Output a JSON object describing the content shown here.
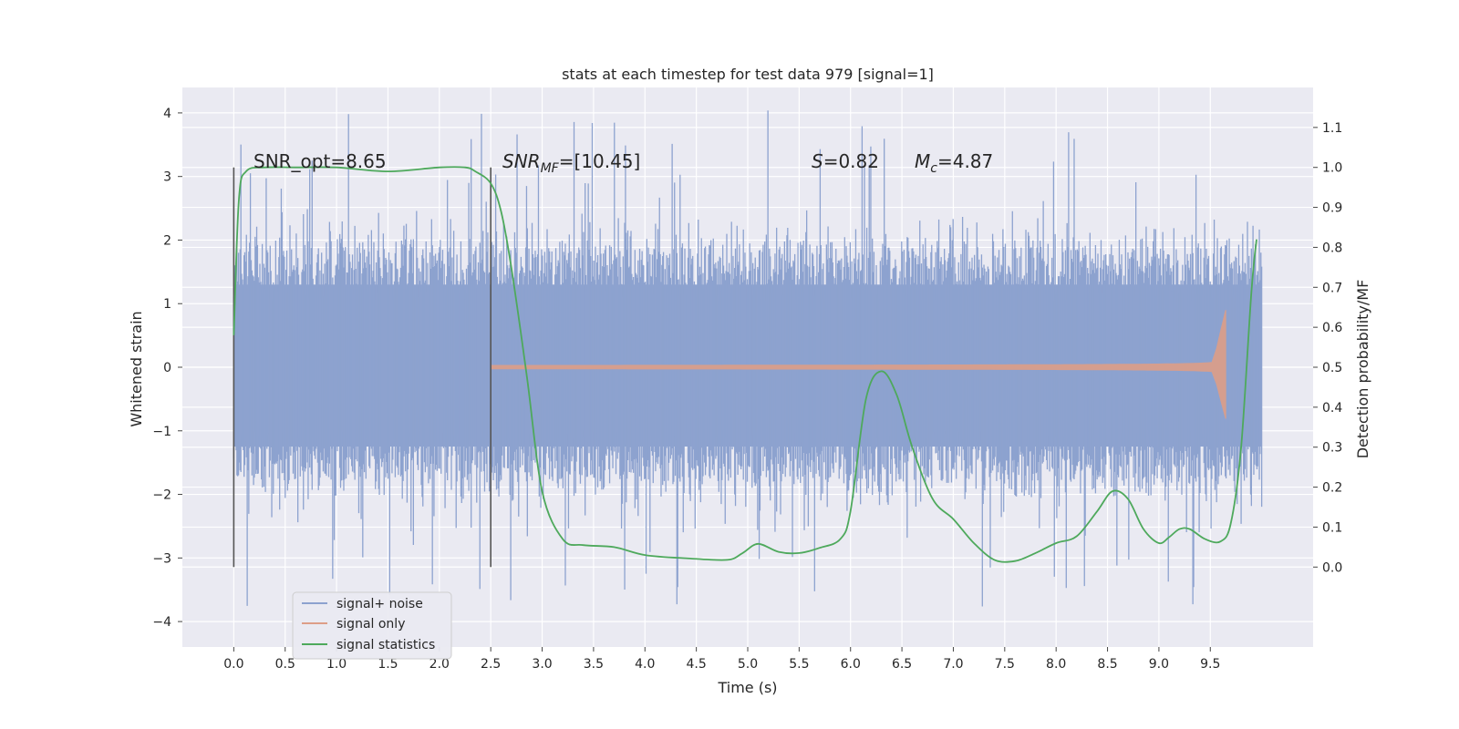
{
  "chart_data": {
    "type": "line",
    "title": "stats at each timestep for test data 979 [signal=1]",
    "xlabel": "Time (s)",
    "ylabel_left": "Whitened strain",
    "ylabel_right": "Detection probability/MF",
    "xlim": [
      -0.5,
      10.5
    ],
    "ylim_left": [
      -4.4,
      4.4
    ],
    "ylim_right": [
      -0.2,
      1.2
    ],
    "x_ticks": [
      "0.0",
      "0.5",
      "1.0",
      "1.5",
      "2.0",
      "2.5",
      "3.0",
      "3.5",
      "4.0",
      "4.5",
      "5.0",
      "5.5",
      "6.0",
      "6.5",
      "7.0",
      "7.5",
      "8.0",
      "8.5",
      "9.0",
      "9.5"
    ],
    "y_ticks_left": [
      "−4",
      "−3",
      "−2",
      "−1",
      "0",
      "1",
      "2",
      "3",
      "4"
    ],
    "y_ticks_right": [
      "0.0",
      "0.1",
      "0.2",
      "0.3",
      "0.4",
      "0.5",
      "0.6",
      "0.7",
      "0.8",
      "0.9",
      "1.0",
      "1.1"
    ],
    "grid": true,
    "legend_position": "lower-left",
    "vlines_x": [
      0.0,
      2.5
    ],
    "annotations": {
      "snr_opt": "SNR_opt=8.65",
      "snr_mf_sym": "SNR",
      "snr_mf_sub": "MF",
      "snr_mf_rest": "=[10.45]",
      "s_sym": "S",
      "s_rest": "=0.82",
      "mc_sym": "M",
      "mc_sub": "c",
      "mc_rest": "=4.87"
    },
    "series": [
      {
        "name": "signal+ noise",
        "color": "#8da2cf",
        "kind": "noise band",
        "x_range": [
          0.0,
          10.0
        ],
        "envelope_typical": [
          -1.8,
          1.9
        ],
        "extreme_range": [
          -3.8,
          4.05
        ]
      },
      {
        "name": "signal only",
        "color": "#dd9e88",
        "kind": "chirp",
        "x_range": [
          2.5,
          9.65
        ],
        "amplitude_end": 0.9
      },
      {
        "name": "signal statistics",
        "color": "#4ea95c",
        "axis": "right",
        "x": [
          0.0,
          0.05,
          0.12,
          0.3,
          0.6,
          1.0,
          1.5,
          2.0,
          2.25,
          2.35,
          2.5,
          2.6,
          2.7,
          2.85,
          3.0,
          3.2,
          3.4,
          3.7,
          4.0,
          4.4,
          4.8,
          4.95,
          5.1,
          5.3,
          5.5,
          5.7,
          5.9,
          6.0,
          6.15,
          6.3,
          6.45,
          6.6,
          6.8,
          7.0,
          7.2,
          7.4,
          7.6,
          7.8,
          8.0,
          8.2,
          8.4,
          8.55,
          8.7,
          8.85,
          9.0,
          9.1,
          9.2,
          9.3,
          9.45,
          9.6,
          9.7,
          9.8,
          9.9,
          9.95
        ],
        "y": [
          0.58,
          0.92,
          0.99,
          1.0,
          1.0,
          1.0,
          0.99,
          1.0,
          1.0,
          0.99,
          0.96,
          0.89,
          0.75,
          0.48,
          0.19,
          0.07,
          0.055,
          0.05,
          0.03,
          0.022,
          0.018,
          0.035,
          0.058,
          0.038,
          0.035,
          0.048,
          0.07,
          0.14,
          0.42,
          0.49,
          0.43,
          0.3,
          0.17,
          0.12,
          0.06,
          0.018,
          0.015,
          0.035,
          0.06,
          0.077,
          0.14,
          0.19,
          0.17,
          0.095,
          0.06,
          0.075,
          0.095,
          0.095,
          0.07,
          0.064,
          0.11,
          0.3,
          0.69,
          0.82
        ]
      }
    ]
  }
}
